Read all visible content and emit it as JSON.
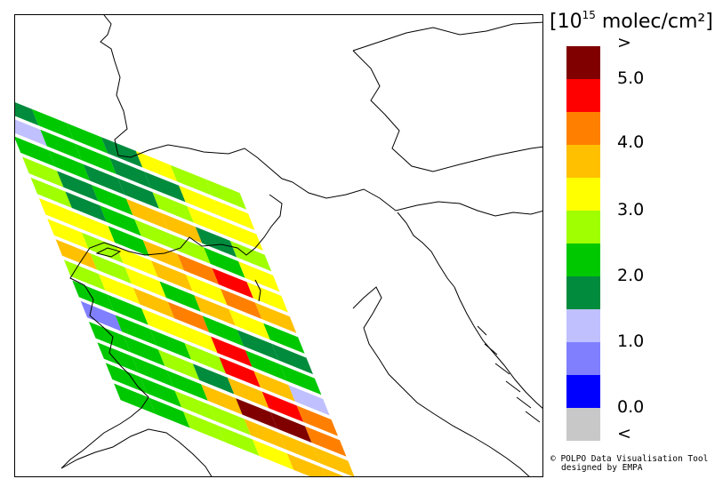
{
  "legend": {
    "unit_prefix": "[10",
    "unit_exp": "15",
    "unit_suffix": " molec/cm²]",
    "colors": [
      "#800000",
      "#ff0000",
      "#ff8000",
      "#ffc000",
      "#ffff00",
      "#a0ff00",
      "#00c800",
      "#008c3c",
      "#c0c0ff",
      "#8080ff",
      "#0000ff",
      "#c8c8c8"
    ],
    "labels": [
      ">",
      "5.0",
      "4.0",
      "3.0",
      "2.0",
      "1.0",
      "0.0",
      "<"
    ]
  },
  "credit": {
    "line1": "© POLPO Data Visualisation Tool",
    "line2": "designed by EMPA"
  },
  "swaths": [
    [
      7,
      6,
      6,
      7,
      4,
      5,
      5
    ],
    [
      8,
      6,
      6,
      7,
      7,
      4,
      4
    ],
    [
      6,
      6,
      7,
      7,
      5,
      4,
      4
    ],
    [
      5,
      7,
      6,
      3,
      3,
      7,
      5
    ],
    [
      5,
      7,
      6,
      5,
      5,
      6,
      4
    ],
    [
      4,
      4,
      6,
      3,
      2,
      1,
      4
    ],
    [
      4,
      5,
      4,
      3,
      4,
      2,
      3
    ],
    [
      3,
      5,
      4,
      6,
      3,
      4,
      6
    ],
    [
      5,
      4,
      3,
      2,
      6,
      7,
      7
    ],
    [
      6,
      6,
      4,
      4,
      1,
      6,
      6
    ],
    [
      9,
      6,
      6,
      5,
      1,
      3,
      8
    ],
    [
      6,
      6,
      5,
      7,
      3,
      1,
      2
    ],
    [
      6,
      6,
      6,
      3,
      0,
      0,
      2
    ],
    [
      6,
      6,
      5,
      5,
      3,
      3,
      3
    ],
    [
      6,
      6,
      5,
      5,
      4,
      3,
      3
    ]
  ]
}
